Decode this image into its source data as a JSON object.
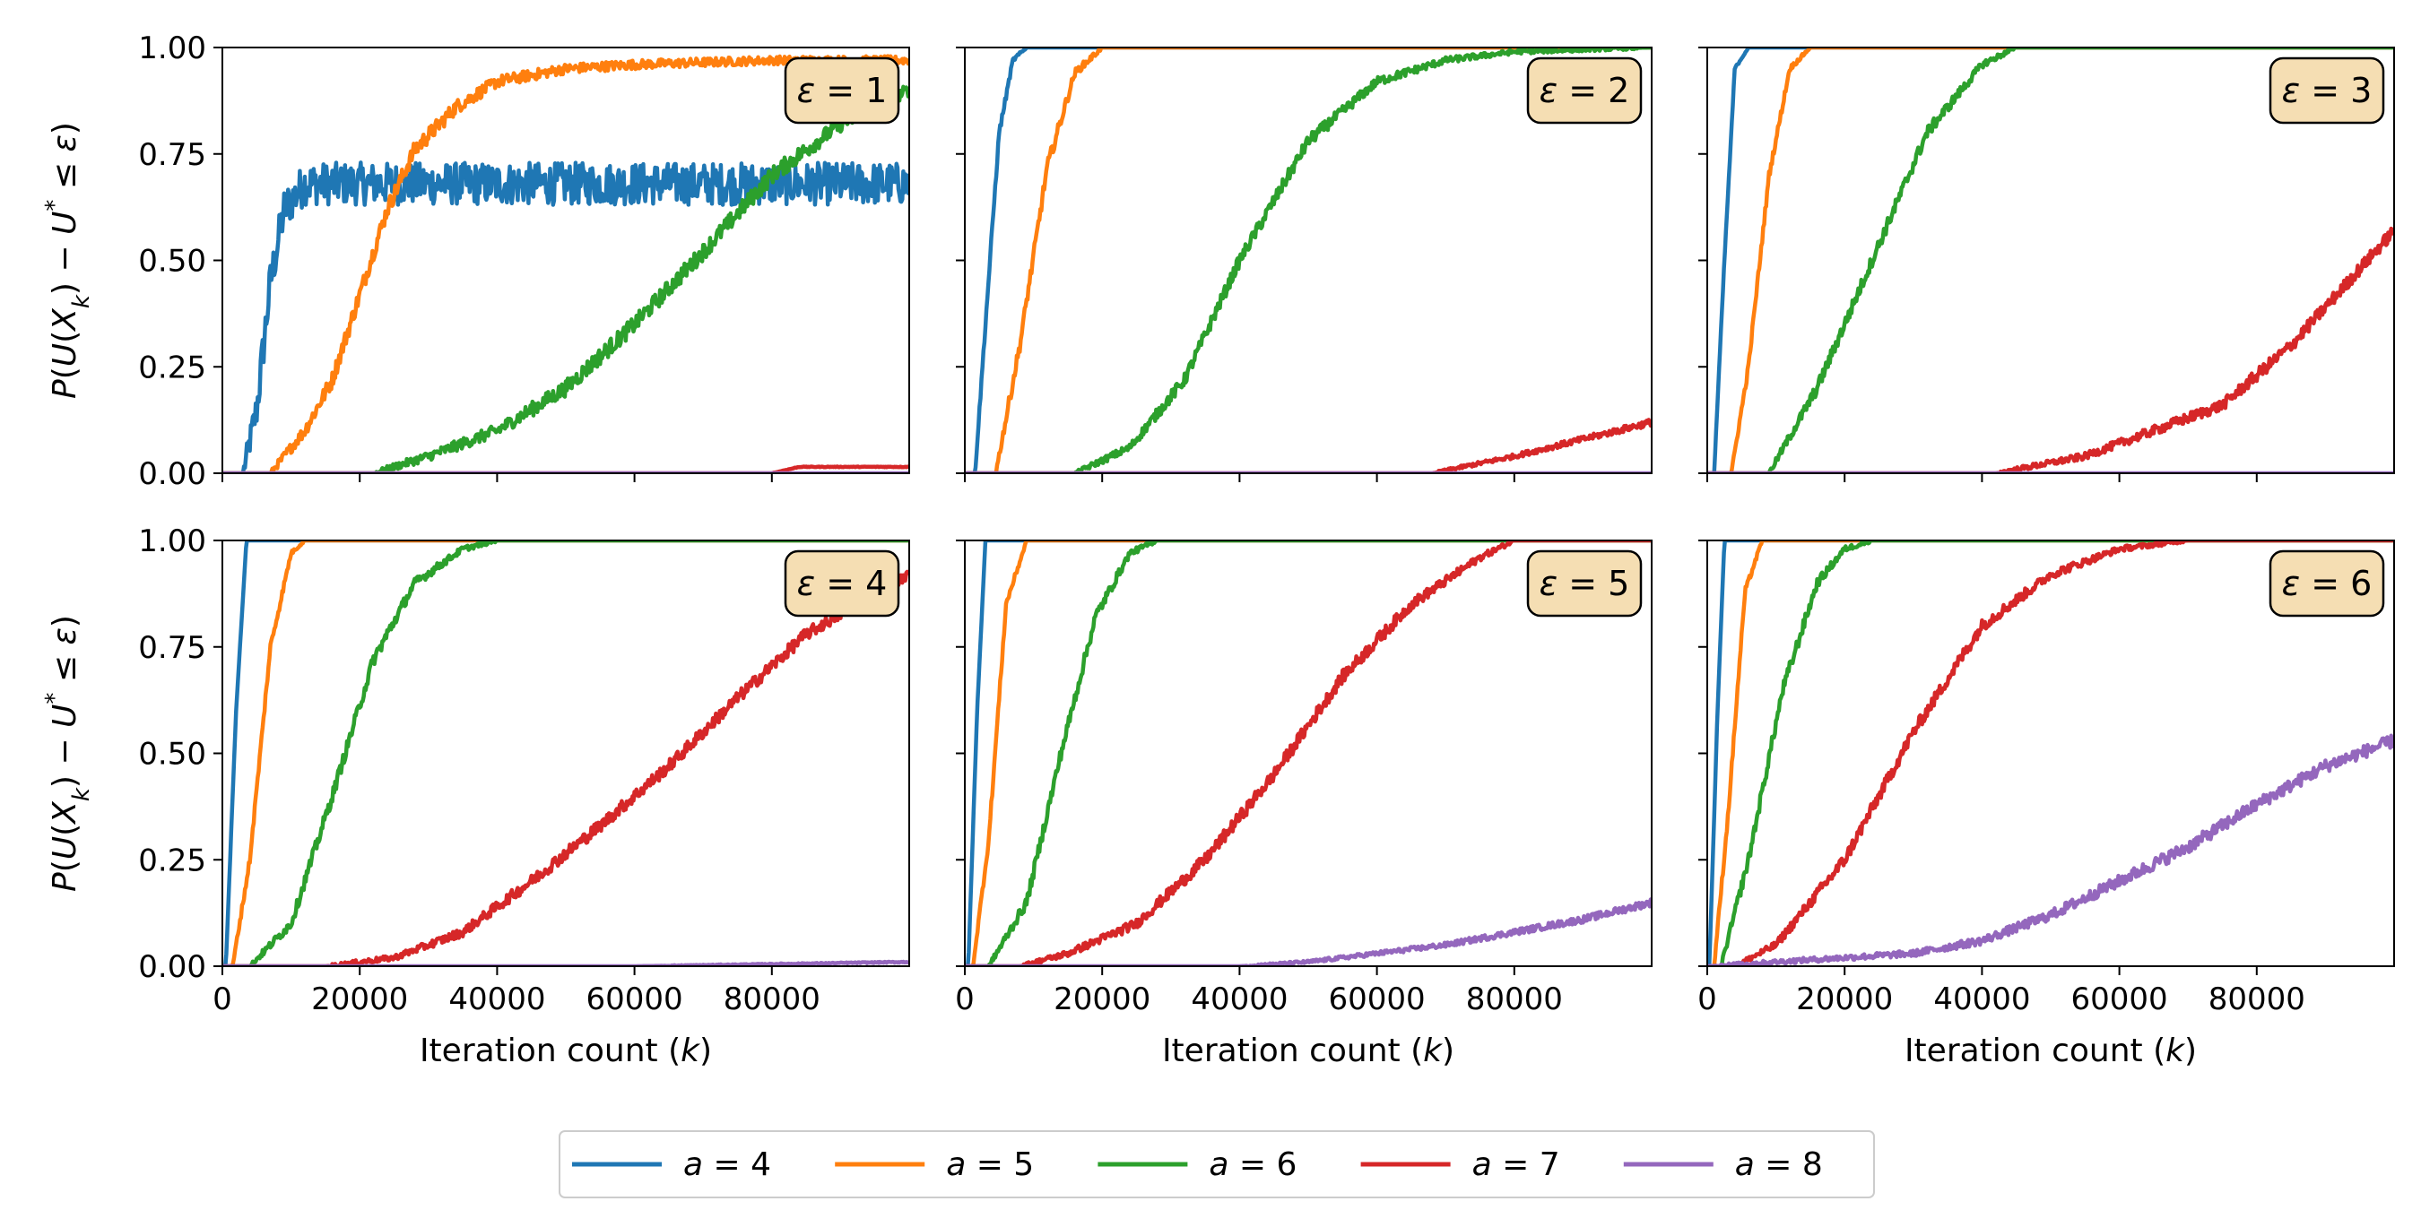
{
  "chart_data": {
    "type": "line",
    "layout": "2x3 grid of subplots sharing axes",
    "xlabel": "Iteration count (k)",
    "xlabel_parts": [
      "Iteration count (",
      "k",
      ")"
    ],
    "ylabel": "P(U(X_k) − U* ≤ ε)",
    "xlim": [
      0,
      100000
    ],
    "ylim": [
      0,
      1
    ],
    "xticks": [
      0,
      20000,
      40000,
      60000,
      80000
    ],
    "xtick_labels": [
      "0",
      "20000",
      "40000",
      "60000",
      "80000"
    ],
    "yticks": [
      0,
      0.25,
      0.5,
      0.75,
      1.0
    ],
    "ytick_labels": [
      "0.00",
      "0.25",
      "0.50",
      "0.75",
      "1.00"
    ],
    "legend_position": "bottom-center",
    "series_styles": [
      {
        "name": "a = 4",
        "label_var": "a",
        "label_val": "4",
        "color": "#1f77b4"
      },
      {
        "name": "a = 5",
        "label_var": "a",
        "label_val": "5",
        "color": "#ff7f0e"
      },
      {
        "name": "a = 6",
        "label_var": "a",
        "label_val": "6",
        "color": "#2ca02c"
      },
      {
        "name": "a = 7",
        "label_var": "a",
        "label_val": "7",
        "color": "#d62728"
      },
      {
        "name": "a = 8",
        "label_var": "a",
        "label_val": "8",
        "color": "#9467bd"
      }
    ],
    "subplots": [
      {
        "title": "ε = 1",
        "title_var": "ε",
        "title_val": "1",
        "series": [
          {
            "name": "a = 4",
            "x": [
              0,
              3000,
              5000,
              7000,
              9000,
              12000,
              20000,
              40000,
              60000,
              80000,
              100000
            ],
            "y": [
              0,
              0,
              0.15,
              0.45,
              0.62,
              0.68,
              0.68,
              0.68,
              0.68,
              0.68,
              0.68
            ],
            "noise": 0.05
          },
          {
            "name": "a = 5",
            "x": [
              0,
              7000,
              12000,
              16000,
              20000,
              24000,
              28000,
              34000,
              40000,
              50000,
              60000,
              80000,
              100000
            ],
            "y": [
              0,
              0,
              0.1,
              0.22,
              0.42,
              0.62,
              0.76,
              0.86,
              0.92,
              0.95,
              0.96,
              0.97,
              0.97
            ],
            "noise": 0.02
          },
          {
            "name": "a = 6",
            "x": [
              0,
              22000,
              30000,
              40000,
              50000,
              60000,
              70000,
              80000,
              90000,
              100000
            ],
            "y": [
              0,
              0,
              0.04,
              0.1,
              0.2,
              0.35,
              0.52,
              0.7,
              0.82,
              0.9
            ],
            "noise": 0.02
          },
          {
            "name": "a = 7",
            "x": [
              0,
              80000,
              84000,
              100000
            ],
            "y": [
              0,
              0,
              0.015,
              0.015
            ],
            "noise": 0.002
          },
          {
            "name": "a = 8",
            "x": [
              0,
              100000
            ],
            "y": [
              0,
              0
            ],
            "noise": 0
          }
        ]
      },
      {
        "title": "ε = 2",
        "title_var": "ε",
        "title_val": "2",
        "series": [
          {
            "name": "a = 4",
            "x": [
              0,
              1500,
              3000,
              5000,
              7000,
              9000,
              100000
            ],
            "y": [
              0,
              0,
              0.35,
              0.8,
              0.97,
              1.0,
              1.0
            ],
            "noise": 0.01
          },
          {
            "name": "a = 5",
            "x": [
              0,
              4500,
              8000,
              12000,
              16000,
              20000,
              100000
            ],
            "y": [
              0,
              0,
              0.3,
              0.72,
              0.94,
              1.0,
              1.0
            ],
            "noise": 0.015
          },
          {
            "name": "a = 6",
            "x": [
              0,
              16000,
              24000,
              32000,
              40000,
              50000,
              60000,
              70000,
              80000,
              100000
            ],
            "y": [
              0,
              0,
              0.06,
              0.22,
              0.5,
              0.78,
              0.92,
              0.97,
              0.99,
              1.0
            ],
            "noise": 0.015
          },
          {
            "name": "a = 7",
            "x": [
              0,
              68000,
              80000,
              90000,
              100000
            ],
            "y": [
              0,
              0,
              0.04,
              0.08,
              0.12
            ],
            "noise": 0.01
          },
          {
            "name": "a = 8",
            "x": [
              0,
              100000
            ],
            "y": [
              0,
              0
            ],
            "noise": 0
          }
        ]
      },
      {
        "title": "ε = 3",
        "title_var": "ε",
        "title_val": "3",
        "series": [
          {
            "name": "a = 4",
            "x": [
              0,
              1000,
              2500,
              4000,
              6000,
              100000
            ],
            "y": [
              0,
              0,
              0.5,
              0.95,
              1.0,
              1.0
            ],
            "noise": 0.005
          },
          {
            "name": "a = 5",
            "x": [
              0,
              3500,
              6000,
              9000,
              12000,
              15000,
              100000
            ],
            "y": [
              0,
              0,
              0.25,
              0.7,
              0.95,
              1.0,
              1.0
            ],
            "noise": 0.01
          },
          {
            "name": "a = 6",
            "x": [
              0,
              9000,
              16000,
              24000,
              32000,
              40000,
              45000,
              100000
            ],
            "y": [
              0,
              0,
              0.2,
              0.5,
              0.8,
              0.96,
              1.0,
              1.0
            ],
            "noise": 0.015
          },
          {
            "name": "a = 7",
            "x": [
              0,
              42000,
              55000,
              65000,
              75000,
              85000,
              100000
            ],
            "y": [
              0,
              0,
              0.04,
              0.1,
              0.16,
              0.3,
              0.57
            ],
            "noise": 0.015
          },
          {
            "name": "a = 8",
            "x": [
              0,
              100000
            ],
            "y": [
              0,
              0
            ],
            "noise": 0
          }
        ]
      },
      {
        "title": "ε = 4",
        "title_var": "ε",
        "title_val": "4",
        "series": [
          {
            "name": "a = 4",
            "x": [
              0,
              500,
              2000,
              3500,
              100000
            ],
            "y": [
              0,
              0,
              0.6,
              1.0,
              1.0
            ],
            "noise": 0.002
          },
          {
            "name": "a = 5",
            "x": [
              0,
              1500,
              4000,
              7000,
              10000,
              12000,
              100000
            ],
            "y": [
              0,
              0,
              0.25,
              0.75,
              0.97,
              1.0,
              1.0
            ],
            "noise": 0.01
          },
          {
            "name": "a = 6",
            "x": [
              0,
              4000,
              10000,
              16000,
              22000,
              28000,
              35000,
              40000,
              100000
            ],
            "y": [
              0,
              0,
              0.1,
              0.4,
              0.72,
              0.9,
              0.98,
              1.0,
              1.0
            ],
            "noise": 0.015
          },
          {
            "name": "a = 7",
            "x": [
              0,
              15000,
              25000,
              35000,
              45000,
              55000,
              65000,
              75000,
              85000,
              100000
            ],
            "y": [
              0,
              0,
              0.02,
              0.08,
              0.2,
              0.33,
              0.47,
              0.63,
              0.78,
              0.92
            ],
            "noise": 0.015
          },
          {
            "name": "a = 8",
            "x": [
              0,
              60000,
              100000
            ],
            "y": [
              0,
              0,
              0.01
            ],
            "noise": 0.004
          }
        ]
      },
      {
        "title": "ε = 5",
        "title_var": "ε",
        "title_val": "5",
        "series": [
          {
            "name": "a = 4",
            "x": [
              0,
              500,
              1800,
              3000,
              100000
            ],
            "y": [
              0,
              0,
              0.6,
              1.0,
              1.0
            ],
            "noise": 0.002
          },
          {
            "name": "a = 5",
            "x": [
              0,
              1200,
              3500,
              6000,
              9000,
              100000
            ],
            "y": [
              0,
              0,
              0.3,
              0.85,
              1.0,
              1.0
            ],
            "noise": 0.01
          },
          {
            "name": "a = 6",
            "x": [
              0,
              3500,
              9000,
              14000,
              19000,
              24000,
              28000,
              100000
            ],
            "y": [
              0,
              0,
              0.15,
              0.5,
              0.82,
              0.97,
              1.0,
              1.0
            ],
            "noise": 0.015
          },
          {
            "name": "a = 7",
            "x": [
              0,
              8000,
              15000,
              25000,
              35000,
              45000,
              55000,
              65000,
              75000,
              80000,
              100000
            ],
            "y": [
              0,
              0,
              0.03,
              0.1,
              0.25,
              0.45,
              0.68,
              0.85,
              0.96,
              1.0,
              1.0
            ],
            "noise": 0.015
          },
          {
            "name": "a = 8",
            "x": [
              0,
              40000,
              50000,
              60000,
              70000,
              80000,
              90000,
              100000
            ],
            "y": [
              0,
              0,
              0.01,
              0.03,
              0.05,
              0.08,
              0.11,
              0.15
            ],
            "noise": 0.01
          }
        ]
      },
      {
        "title": "ε = 6",
        "title_var": "ε",
        "title_val": "6",
        "series": [
          {
            "name": "a = 4",
            "x": [
              0,
              300,
              1500,
              2500,
              100000
            ],
            "y": [
              0,
              0,
              0.6,
              1.0,
              1.0
            ],
            "noise": 0.002
          },
          {
            "name": "a = 5",
            "x": [
              0,
              1000,
              3000,
              5500,
              8000,
              100000
            ],
            "y": [
              0,
              0,
              0.35,
              0.88,
              1.0,
              1.0
            ],
            "noise": 0.01
          },
          {
            "name": "a = 6",
            "x": [
              0,
              2000,
              6000,
              11000,
              16000,
              20000,
              24000,
              100000
            ],
            "y": [
              0,
              0,
              0.25,
              0.65,
              0.9,
              0.98,
              1.0,
              1.0
            ],
            "noise": 0.015
          },
          {
            "name": "a = 7",
            "x": [
              0,
              4000,
              10000,
              20000,
              30000,
              40000,
              50000,
              60000,
              70000,
              100000
            ],
            "y": [
              0,
              0,
              0.05,
              0.25,
              0.55,
              0.8,
              0.92,
              0.98,
              1.0,
              1.0
            ],
            "noise": 0.015
          },
          {
            "name": "a = 8",
            "x": [
              0,
              10000,
              20000,
              30000,
              40000,
              50000,
              60000,
              70000,
              80000,
              90000,
              100000
            ],
            "y": [
              0,
              0.01,
              0.02,
              0.03,
              0.06,
              0.12,
              0.2,
              0.28,
              0.38,
              0.47,
              0.53
            ],
            "noise": 0.015
          }
        ]
      }
    ]
  }
}
